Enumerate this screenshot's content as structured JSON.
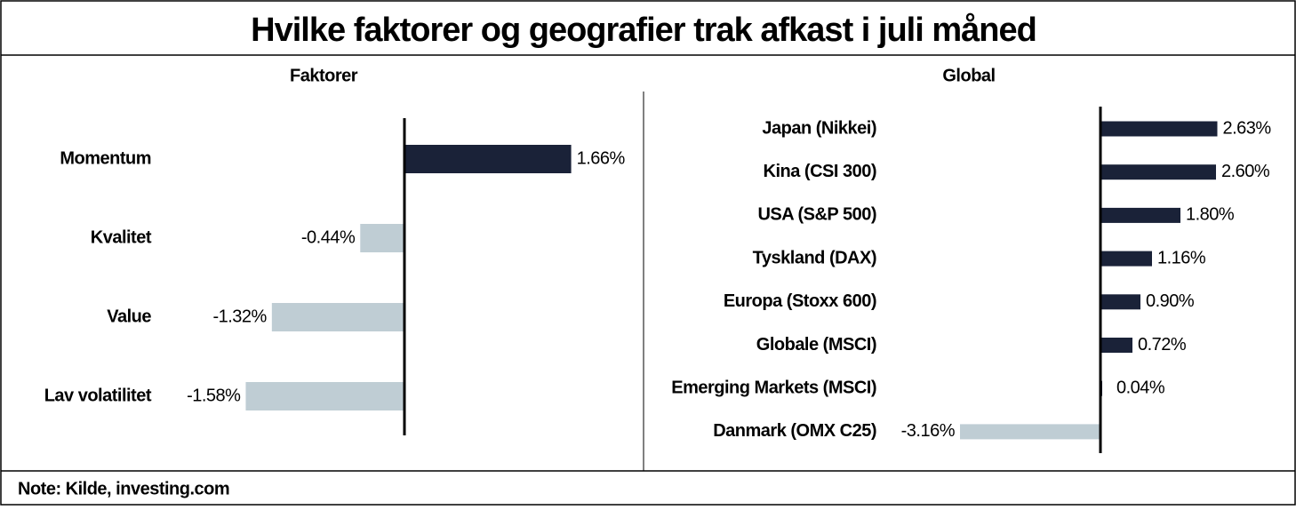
{
  "title": "Hvilke faktorer og geografier trak afkast i juli måned",
  "note": "Note: Kilde, investing.com",
  "chart_data": [
    {
      "type": "barh",
      "title": "Faktorer",
      "categories": [
        "Momentum",
        "Kvalitet",
        "Value",
        "Lav volatilitet"
      ],
      "values": [
        1.66,
        -0.44,
        -1.32,
        -1.58
      ],
      "value_labels": [
        "1.66%",
        "-0.44%",
        "-1.32%",
        "-1.58%"
      ],
      "positive_color": "#1a2238",
      "negative_color": "#bfcdd4"
    },
    {
      "type": "barh",
      "title": "Global",
      "categories": [
        "Japan (Nikkei)",
        "Kina (CSI 300)",
        "USA (S&P 500)",
        "Tyskland (DAX)",
        "Europa (Stoxx 600)",
        "Globale (MSCI)",
        "Emerging Markets (MSCI)",
        "Danmark (OMX C25)"
      ],
      "values": [
        2.63,
        2.6,
        1.8,
        1.16,
        0.9,
        0.72,
        0.04,
        -3.16
      ],
      "value_labels": [
        "2.63%",
        "2.60%",
        "1.80%",
        "1.16%",
        "0.90%",
        "0.72%",
        "0.04%",
        "-3.16%"
      ],
      "positive_color": "#1a2238",
      "negative_color": "#bfcdd4"
    }
  ]
}
